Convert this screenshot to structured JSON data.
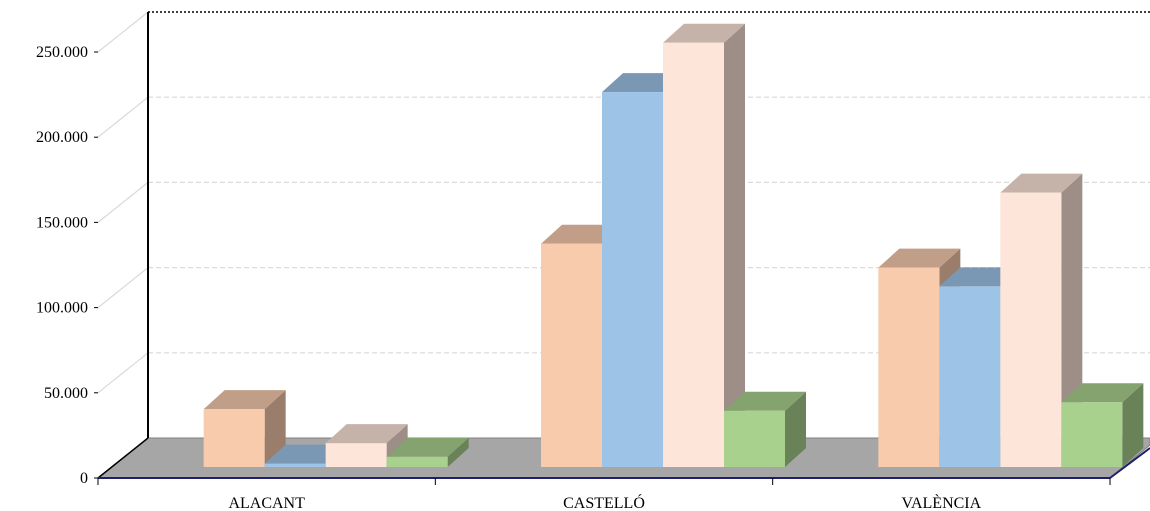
{
  "chart_data": {
    "type": "bar",
    "style": "3d-clustered-column",
    "categories": [
      "ALACANT",
      "CASTELLÓ",
      "VALÈNCIA"
    ],
    "series": [
      {
        "color": "#f8cbad",
        "values": [
          34000,
          131000,
          117000
        ]
      },
      {
        "color": "#9dc3e6",
        "values": [
          2000,
          220000,
          106000
        ]
      },
      {
        "color": "#fde5d9",
        "values": [
          14000,
          249000,
          161000
        ]
      },
      {
        "color": "#a9d18e",
        "values": [
          6000,
          33000,
          38000
        ]
      }
    ],
    "y_ticks": [
      "0",
      "50.000",
      "100.000",
      "150.000",
      "200.000",
      "250.000"
    ],
    "ylim": [
      0,
      250000
    ],
    "grid": true,
    "legend": "none"
  }
}
